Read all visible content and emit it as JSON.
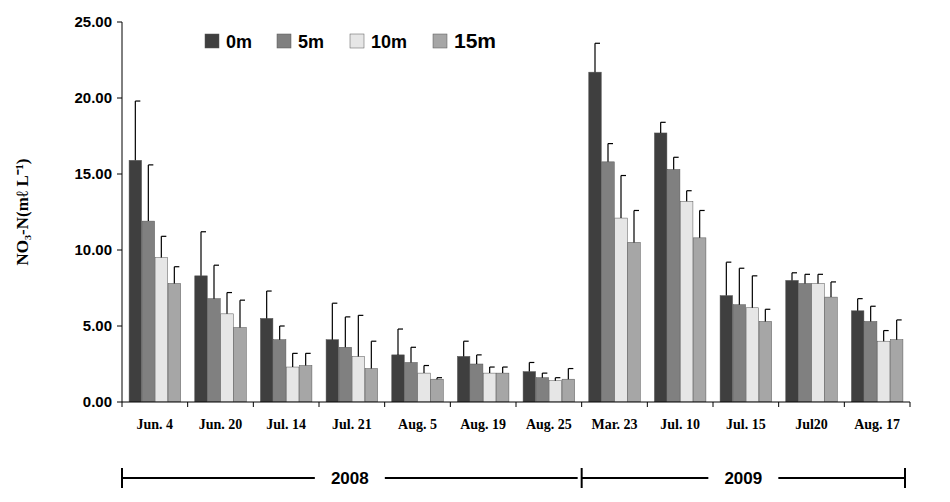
{
  "chart_data": {
    "type": "bar",
    "y_label": "NO₃-N(mℓ L⁻¹)",
    "categories": [
      "Jun. 4",
      "Jun. 20",
      "Jul. 14",
      "Jul. 21",
      "Aug. 5",
      "Aug. 19",
      "Aug. 25",
      "Mar. 23",
      "Jul. 10",
      "Jul. 15",
      "Jul20",
      "Aug. 17"
    ],
    "groups": [
      {
        "label": "2008",
        "span": [
          0,
          6
        ]
      },
      {
        "label": "2009",
        "span": [
          7,
          11
        ]
      }
    ],
    "series": [
      {
        "name": "0m",
        "color": "#3f3f3f",
        "values": [
          15.9,
          8.3,
          5.5,
          4.1,
          3.1,
          3.0,
          2.0,
          21.7,
          17.7,
          7.0,
          8.0,
          6.0
        ],
        "errors": [
          3.9,
          2.9,
          1.8,
          2.4,
          1.7,
          1.0,
          0.6,
          1.9,
          0.7,
          2.2,
          0.5,
          0.8
        ]
      },
      {
        "name": "5m",
        "color": "#808080",
        "values": [
          11.9,
          6.8,
          4.1,
          3.6,
          2.6,
          2.5,
          1.6,
          15.8,
          15.3,
          6.4,
          7.8,
          5.3
        ],
        "errors": [
          3.7,
          2.2,
          0.9,
          2.0,
          1.0,
          0.6,
          0.3,
          1.2,
          0.8,
          2.4,
          0.6,
          1.0
        ]
      },
      {
        "name": "10m",
        "color": "#e6e6e6",
        "values": [
          9.5,
          5.8,
          2.3,
          3.0,
          1.9,
          1.9,
          1.4,
          12.1,
          13.2,
          6.2,
          7.8,
          4.0
        ],
        "errors": [
          1.4,
          1.4,
          0.9,
          2.7,
          0.5,
          0.4,
          0.2,
          2.8,
          0.7,
          2.1,
          0.6,
          0.7
        ]
      },
      {
        "name": "15m",
        "color": "#a6a6a6",
        "values": [
          7.8,
          4.9,
          2.4,
          2.2,
          1.5,
          1.9,
          1.5,
          10.5,
          10.8,
          5.3,
          6.9,
          4.1
        ],
        "errors": [
          1.1,
          1.8,
          0.8,
          1.8,
          0.1,
          0.4,
          0.7,
          2.1,
          1.8,
          0.8,
          1.0,
          1.3
        ]
      }
    ],
    "ylim": [
      0,
      25
    ],
    "yticks": [
      {
        "value": 0,
        "label": "0.00"
      },
      {
        "value": 5,
        "label": "5.00"
      },
      {
        "value": 10,
        "label": "10.00"
      },
      {
        "value": 15,
        "label": "15.00"
      },
      {
        "value": 20,
        "label": "20.00"
      },
      {
        "value": 25,
        "label": "25.00"
      }
    ],
    "grid": false,
    "legend": "top-left"
  }
}
